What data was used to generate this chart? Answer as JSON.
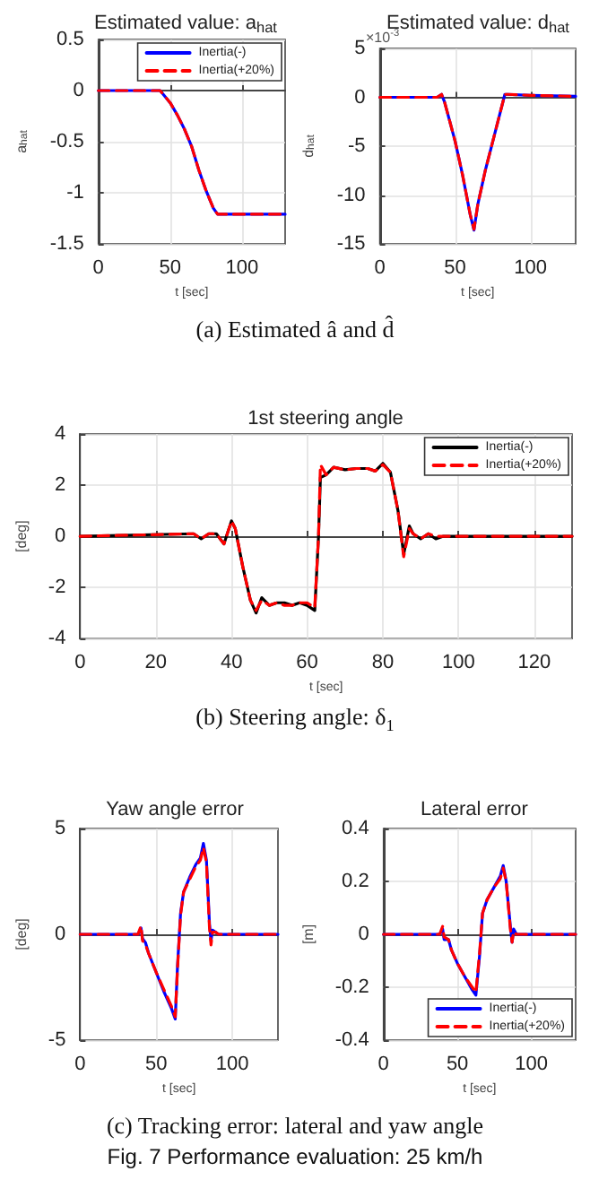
{
  "chart_data": [
    {
      "type": "line",
      "title": "Estimated value: a$_{hat}$",
      "xlabel": "t [sec]",
      "ylabel": "a$_{hat}$",
      "x": [
        0,
        43,
        50,
        55,
        60,
        65,
        70,
        75,
        80,
        83,
        130
      ],
      "xlim": [
        0,
        130
      ],
      "xticks": [
        0,
        50,
        100
      ],
      "ylim": [
        -1.5,
        0.5
      ],
      "yticks": [
        -1.5,
        -1,
        -0.5,
        0,
        0.5
      ],
      "grid": true,
      "legend": "top right",
      "annotations": [
        "(a)  Estimated  â  and  d̂"
      ],
      "series": [
        {
          "name": "Inertia(-)",
          "color": "#0000ff",
          "line_style": "solid",
          "values": [
            0,
            0,
            -0.12,
            -0.24,
            -0.38,
            -0.55,
            -0.78,
            -0.98,
            -1.15,
            -1.21,
            -1.21
          ]
        },
        {
          "name": "Inertia(+20%)",
          "color": "#ff0000",
          "line_style": "dashed",
          "values": [
            0,
            0,
            -0.12,
            -0.24,
            -0.38,
            -0.55,
            -0.78,
            -0.98,
            -1.15,
            -1.21,
            -1.21
          ]
        }
      ]
    },
    {
      "type": "line",
      "title": "Estimated value: d$_{hat}$",
      "xlabel": "t [sec]",
      "ylabel": "d$_{hat}$",
      "x": [
        0,
        38,
        41,
        43,
        50,
        55,
        60,
        62.5,
        65,
        70,
        75,
        80,
        83,
        85,
        100,
        130
      ],
      "xlim": [
        0,
        130
      ],
      "xticks": [
        0,
        50,
        100
      ],
      "ylim": [
        -15,
        5
      ],
      "yticks": [
        -15,
        -10,
        -5,
        0,
        5
      ],
      "grid": true,
      "annotations": [
        "×10$^{-3}$"
      ],
      "series": [
        {
          "color": "#0000ff",
          "line_style": "solid",
          "values": [
            0,
            0,
            0.3,
            -0.5,
            -4.5,
            -8,
            -12,
            -13.6,
            -11,
            -7.5,
            -4.5,
            -1.5,
            0.3,
            0.3,
            0.2,
            0.1
          ]
        },
        {
          "color": "#ff0000",
          "line_style": "dashed",
          "values": [
            0,
            0,
            0.3,
            -0.5,
            -4.5,
            -8,
            -12,
            -13.5,
            -11,
            -7.5,
            -4.5,
            -1.5,
            0.3,
            0.3,
            0.2,
            0.1
          ]
        }
      ]
    },
    {
      "type": "line",
      "title": "1st steering angle",
      "xlabel": "t [sec]",
      "ylabel": "[deg]",
      "x": [
        0,
        30,
        32,
        34,
        36,
        38,
        40,
        41,
        43,
        45,
        46.5,
        48,
        50,
        52,
        54,
        56,
        58,
        60,
        62,
        63,
        63.5,
        65,
        67,
        70,
        73,
        76,
        78,
        80,
        82,
        84,
        85.5,
        87,
        88,
        90,
        92,
        94,
        96,
        130
      ],
      "xlim": [
        0,
        130
      ],
      "xticks": [
        0,
        20,
        40,
        60,
        80,
        100,
        120
      ],
      "ylim": [
        -4,
        4
      ],
      "yticks": [
        -4,
        -2,
        0,
        2,
        4
      ],
      "grid": true,
      "legend": "top right",
      "annotations": [
        "(b)  Steering  angle:  δ$_{1}$"
      ],
      "series": [
        {
          "name": "Inertia(-)",
          "color": "#000000",
          "line_style": "solid",
          "values": [
            0,
            0.1,
            -0.1,
            0.1,
            0.1,
            -0.3,
            0.6,
            0.3,
            -1.2,
            -2.5,
            -3.0,
            -2.4,
            -2.7,
            -2.6,
            -2.6,
            -2.7,
            -2.6,
            -2.7,
            -2.9,
            0,
            2.3,
            2.4,
            2.7,
            2.6,
            2.65,
            2.65,
            2.55,
            2.85,
            2.5,
            1.0,
            -0.7,
            0.4,
            0.1,
            -0.1,
            0.1,
            -0.1,
            0,
            0
          ]
        },
        {
          "name": "Inertia(+20%)",
          "color": "#ff0000",
          "line_style": "dashed",
          "values": [
            0,
            0.1,
            -0.1,
            0.1,
            0.1,
            -0.3,
            0.6,
            0.3,
            -1.2,
            -2.5,
            -2.9,
            -2.5,
            -2.7,
            -2.6,
            -2.7,
            -2.7,
            -2.6,
            -2.6,
            -2.8,
            0,
            2.8,
            2.4,
            2.7,
            2.6,
            2.65,
            2.65,
            2.55,
            2.8,
            2.5,
            1.0,
            -0.8,
            0.3,
            0.1,
            -0.1,
            0.1,
            0,
            0,
            0
          ]
        }
      ]
    },
    {
      "type": "line",
      "title": "Yaw angle error",
      "xlabel": "t [sec]",
      "ylabel": "[deg]",
      "x": [
        0,
        38,
        40,
        41,
        43,
        45,
        50,
        55,
        60,
        62.5,
        64,
        66,
        68,
        72,
        76,
        79,
        81,
        83,
        85,
        86,
        87,
        89,
        91,
        130
      ],
      "xlim": [
        0,
        130
      ],
      "xticks": [
        0,
        50,
        100
      ],
      "ylim": [
        -5,
        5
      ],
      "yticks": [
        -5,
        0,
        5
      ],
      "grid": true,
      "annotations": [
        "(c)  Tracking  error:  lateral  and  yaw  angle",
        "Fig. 7 Performance evaluation: 25 km/h"
      ],
      "series": [
        {
          "color": "#0000ff",
          "line_style": "solid",
          "values": [
            0,
            0,
            0.3,
            -0.2,
            -0.4,
            -0.9,
            -1.8,
            -2.7,
            -3.5,
            -4.0,
            -1.5,
            1.0,
            2.0,
            2.7,
            3.3,
            3.6,
            4.3,
            3.5,
            0.5,
            -0.3,
            0.2,
            0.1,
            0,
            0
          ]
        },
        {
          "color": "#ff0000",
          "line_style": "dashed",
          "values": [
            0,
            0,
            0.4,
            -0.3,
            -0.5,
            -0.9,
            -1.8,
            -2.6,
            -3.4,
            -3.9,
            -1.6,
            0.9,
            2.0,
            2.6,
            3.2,
            3.5,
            4.1,
            3.4,
            0.3,
            -0.5,
            0.1,
            0.1,
            0,
            0
          ]
        }
      ]
    },
    {
      "type": "line",
      "title": "Lateral error",
      "xlabel": "t [sec]",
      "ylabel": "[m]",
      "x": [
        0,
        38,
        40,
        41,
        44,
        46,
        50,
        55,
        60,
        62.5,
        65,
        67,
        70,
        75,
        79,
        81,
        83,
        86,
        87,
        88,
        90,
        130
      ],
      "xlim": [
        0,
        130
      ],
      "xticks": [
        0,
        50,
        100
      ],
      "ylim": [
        -0.4,
        0.4
      ],
      "yticks": [
        -0.4,
        -0.2,
        0,
        0.2,
        0.4
      ],
      "grid": true,
      "legend": "bottom right",
      "series": [
        {
          "name": "Inertia(-)",
          "color": "#0000ff",
          "line_style": "solid",
          "values": [
            0,
            0,
            0.02,
            -0.02,
            -0.02,
            -0.06,
            -0.11,
            -0.16,
            -0.21,
            -0.23,
            -0.08,
            0.08,
            0.13,
            0.18,
            0.22,
            0.26,
            0.2,
            0.02,
            -0.03,
            0.02,
            0,
            0
          ]
        },
        {
          "name": "Inertia(+20%)",
          "color": "#ff0000",
          "line_style": "dashed",
          "values": [
            0,
            0,
            0.03,
            -0.01,
            -0.02,
            -0.06,
            -0.11,
            -0.16,
            -0.2,
            -0.22,
            -0.07,
            0.08,
            0.13,
            0.18,
            0.21,
            0.25,
            0.2,
            0.01,
            -0.03,
            0.01,
            0,
            0
          ]
        }
      ]
    }
  ]
}
